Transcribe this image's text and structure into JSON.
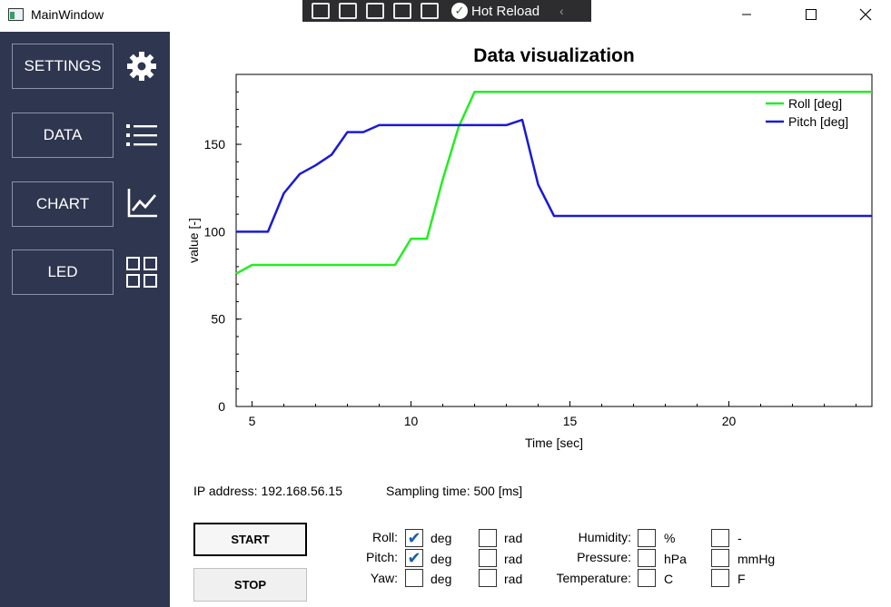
{
  "window": {
    "title": "MainWindow"
  },
  "devtools": {
    "hot_reload_label": "Hot Reload"
  },
  "sidebar": {
    "items": [
      {
        "label": "SETTINGS",
        "icon": "gear-icon"
      },
      {
        "label": "DATA",
        "icon": "list-icon"
      },
      {
        "label": "CHART",
        "icon": "line-chart-icon"
      },
      {
        "label": "LED",
        "icon": "grid-icon"
      }
    ]
  },
  "chart_data": {
    "type": "line",
    "title": "Data visualization",
    "xlabel": "Time [sec]",
    "ylabel": "value [-]",
    "xlim": [
      4.5,
      24.5
    ],
    "ylim": [
      0,
      190
    ],
    "xticks": [
      5,
      10,
      15,
      20
    ],
    "yticks": [
      0,
      50,
      100,
      150
    ],
    "legend_position": "top-right",
    "series": [
      {
        "name": "Roll [deg]",
        "color": "#22ee22",
        "x": [
          4.5,
          5,
          5.5,
          9,
          9.5,
          10,
          10.5,
          11,
          11.5,
          12,
          12.5,
          13,
          24.5
        ],
        "y": [
          76,
          81,
          81,
          81,
          81,
          96,
          96,
          130,
          160,
          180,
          180,
          180,
          180
        ]
      },
      {
        "name": "Pitch [deg]",
        "color": "#1a1ad6",
        "x": [
          4.5,
          5,
          5.5,
          6,
          6.5,
          7,
          7.5,
          8,
          8.5,
          9,
          9.5,
          10,
          13,
          13.5,
          14,
          14.5,
          24.5
        ],
        "y": [
          100,
          100,
          100,
          122,
          133,
          138,
          144,
          157,
          157,
          161,
          161,
          161,
          161,
          164,
          127,
          109,
          109
        ]
      }
    ]
  },
  "info": {
    "ip_label": "IP address:",
    "ip_value": "192.168.56.15",
    "sampling_label": "Sampling time:",
    "sampling_value": "500",
    "sampling_unit": "[ms]"
  },
  "controls": {
    "start_label": "START",
    "stop_label": "STOP"
  },
  "angle_rows": [
    {
      "label": "Roll:",
      "deg_checked": true,
      "rad_checked": false
    },
    {
      "label": "Pitch:",
      "deg_checked": true,
      "rad_checked": false
    },
    {
      "label": "Yaw:",
      "deg_checked": false,
      "rad_checked": false
    }
  ],
  "angle_units": {
    "deg": "deg",
    "rad": "rad"
  },
  "env_rows": [
    {
      "label": "Humidity:",
      "unit1": "%",
      "unit2": "-"
    },
    {
      "label": "Pressure:",
      "unit1": "hPa",
      "unit2": "mmHg"
    },
    {
      "label": "Temperature:",
      "unit1": "C",
      "unit2": "F"
    }
  ]
}
